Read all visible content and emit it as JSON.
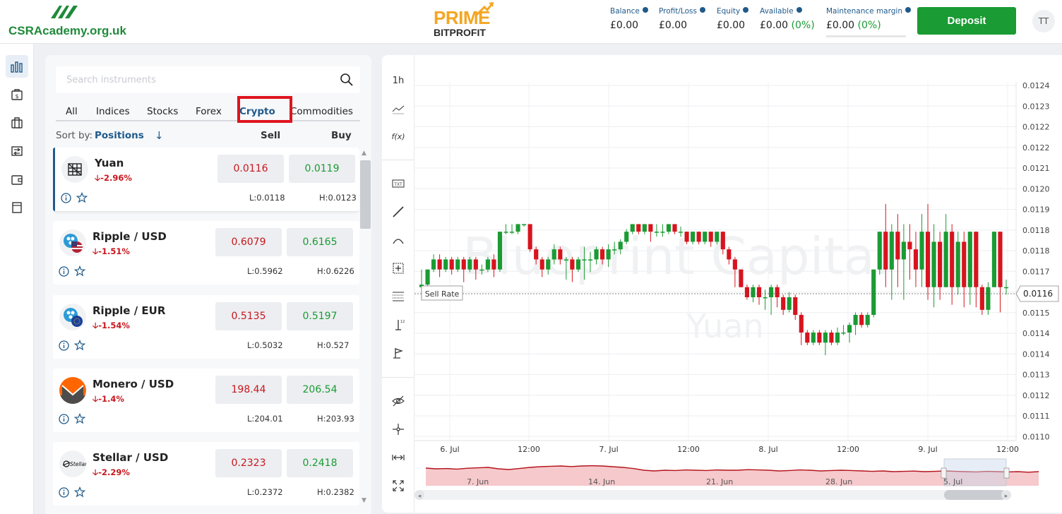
{
  "header": {
    "site_logo_text": "CSRAcademy.org.uk",
    "brand_line1": "PRIME",
    "brand_line2": "BITPROFIT",
    "stats": [
      {
        "label": "Balance",
        "value": "£0.00",
        "pct": ""
      },
      {
        "label": "Profit/Loss",
        "value": "£0.00",
        "pct": ""
      },
      {
        "label": "Equity",
        "value": "£0.00",
        "pct": ""
      },
      {
        "label": "Available",
        "value": "£0.00",
        "pct": "(0%)"
      },
      {
        "label": "Maintenance margin",
        "value": "£0.00",
        "pct": "(0%)"
      }
    ],
    "deposit_label": "Deposit",
    "avatar_initials": "TT"
  },
  "nav": {
    "icons": [
      "chart-bars-icon",
      "money-icon",
      "briefcase-icon",
      "transfer-icon",
      "wallet-icon",
      "document-icon"
    ]
  },
  "panel": {
    "search_placeholder": "Search instruments",
    "tabs": [
      "All",
      "Indices",
      "Stocks",
      "Forex",
      "Crypto",
      "Commodities"
    ],
    "active_tab": "Crypto",
    "sort_label": "Sort by:",
    "sort_value": "Positions",
    "sell_header": "Sell",
    "buy_header": "Buy",
    "instruments": [
      {
        "name": "Yuan",
        "change": "-2.96%",
        "sell": "0.0116",
        "buy": "0.0119",
        "low": "L:0.0118",
        "high": "H:0.0123",
        "icon": "yuan-icon",
        "selected": true
      },
      {
        "name": "Ripple / USD",
        "change": "-1.51%",
        "sell": "0.6079",
        "buy": "0.6165",
        "low": "L:0.5962",
        "high": "H:0.6226",
        "icon": "ripple-usd-icon",
        "selected": false
      },
      {
        "name": "Ripple / EUR",
        "change": "-1.54%",
        "sell": "0.5135",
        "buy": "0.5197",
        "low": "L:0.5032",
        "high": "H:0.527",
        "icon": "ripple-eur-icon",
        "selected": false
      },
      {
        "name": "Monero / USD",
        "change": "-1.4%",
        "sell": "198.44",
        "buy": "206.54",
        "low": "L:204.01",
        "high": "H:203.93",
        "icon": "monero-icon",
        "selected": false
      },
      {
        "name": "Stellar / USD",
        "change": "-2.29%",
        "sell": "0.2323",
        "buy": "0.2418",
        "low": "L:0.2372",
        "high": "H:0.2382",
        "icon": "stellar-icon",
        "selected": false
      }
    ]
  },
  "toolbar": {
    "interval": "1h",
    "fx": "f(x)"
  },
  "chart_data": {
    "type": "candlestick",
    "watermark": "Blueprint Capital",
    "watermark_sub": "Yuan",
    "y_ticks": [
      "0.0124",
      "0.0123",
      "0.0122",
      "0.0122",
      "0.0121",
      "0.0120",
      "0.0119",
      "0.0118",
      "0.0118",
      "0.0117",
      "0.0116",
      "0.0115",
      "0.0114",
      "0.0114",
      "0.0113",
      "0.0112",
      "0.0111",
      "0.0110"
    ],
    "x_ticks": [
      "6. Jul",
      "12:00",
      "7. Jul",
      "12:00",
      "8. Jul",
      "12:00",
      "9. Jul",
      "12:00"
    ],
    "sell_rate_label": "Sell Rate",
    "current_price": "0.0116",
    "ylim": [
      0.011,
      0.0124
    ],
    "navigator_ticks": [
      "7. Jun",
      "14. Jun",
      "21. Jun",
      "28. Jun",
      "5. Jul"
    ],
    "up_color": "#1a9b33",
    "down_color": "#d7141e",
    "candles": [
      [
        0.0116,
        0.01161,
        0.01155,
        0.01167
      ],
      [
        0.01161,
        0.01167,
        0.0116,
        0.01167
      ],
      [
        0.01167,
        0.01171,
        0.01166,
        0.01173
      ],
      [
        0.01171,
        0.01167,
        0.01164,
        0.01173
      ],
      [
        0.01167,
        0.01171,
        0.01166,
        0.01172
      ],
      [
        0.01171,
        0.01167,
        0.01165,
        0.01172
      ],
      [
        0.01167,
        0.01171,
        0.01166,
        0.01172
      ],
      [
        0.01171,
        0.01167,
        0.01162,
        0.01172
      ],
      [
        0.01167,
        0.01171,
        0.01166,
        0.01172
      ],
      [
        0.01171,
        0.01167,
        0.01163,
        0.01172
      ],
      [
        0.01167,
        0.01167,
        0.01165,
        0.01169
      ],
      [
        0.01167,
        0.01171,
        0.01166,
        0.01172
      ],
      [
        0.01171,
        0.01167,
        0.01164,
        0.01173
      ],
      [
        0.01167,
        0.01182,
        0.01166,
        0.01182
      ],
      [
        0.01182,
        0.01182,
        0.01181,
        0.01185
      ],
      [
        0.01182,
        0.01182,
        0.01181,
        0.01185
      ],
      [
        0.01182,
        0.01185,
        0.01181,
        0.01185
      ],
      [
        0.01185,
        0.01185,
        0.01184,
        0.01185
      ],
      [
        0.01185,
        0.01175,
        0.01174,
        0.01185
      ],
      [
        0.01175,
        0.01171,
        0.01169,
        0.01176
      ],
      [
        0.01171,
        0.01167,
        0.01164,
        0.01172
      ],
      [
        0.01167,
        0.01171,
        0.01165,
        0.01172
      ],
      [
        0.01171,
        0.01175,
        0.01169,
        0.01177
      ],
      [
        0.01175,
        0.01171,
        0.01169,
        0.01176
      ],
      [
        0.01171,
        0.01171,
        0.01163,
        0.01172
      ],
      [
        0.01171,
        0.01167,
        0.01162,
        0.01172
      ],
      [
        0.01167,
        0.01171,
        0.01166,
        0.01172
      ],
      [
        0.01171,
        0.01171,
        0.01163,
        0.01176
      ],
      [
        0.01171,
        0.01171,
        0.01166,
        0.01174
      ],
      [
        0.01171,
        0.01175,
        0.01169,
        0.01176
      ],
      [
        0.01175,
        0.01171,
        0.01169,
        0.01176
      ],
      [
        0.01171,
        0.01175,
        0.01168,
        0.01177
      ],
      [
        0.01175,
        0.01175,
        0.01173,
        0.01178
      ],
      [
        0.01175,
        0.01178,
        0.01173,
        0.01179
      ],
      [
        0.01178,
        0.01182,
        0.01177,
        0.01183
      ],
      [
        0.01182,
        0.01185,
        0.01181,
        0.01185
      ],
      [
        0.01185,
        0.01182,
        0.01181,
        0.01185
      ],
      [
        0.01182,
        0.01185,
        0.01181,
        0.01185
      ],
      [
        0.01185,
        0.01182,
        0.01178,
        0.01185
      ],
      [
        0.01182,
        0.01182,
        0.0118,
        0.01185
      ],
      [
        0.01182,
        0.01182,
        0.0118,
        0.01185
      ],
      [
        0.01182,
        0.01185,
        0.01181,
        0.01185
      ],
      [
        0.01185,
        0.01182,
        0.01181,
        0.01185
      ],
      [
        0.01182,
        0.01182,
        0.0118,
        0.01184
      ],
      [
        0.01182,
        0.01178,
        0.01177,
        0.01182
      ],
      [
        0.01178,
        0.01182,
        0.01177,
        0.01182
      ],
      [
        0.01182,
        0.01178,
        0.01177,
        0.01182
      ],
      [
        0.01178,
        0.01182,
        0.01177,
        0.01182
      ],
      [
        0.01182,
        0.01178,
        0.01176,
        0.01182
      ],
      [
        0.01178,
        0.01182,
        0.01177,
        0.01182
      ],
      [
        0.01182,
        0.01175,
        0.01173,
        0.01182
      ],
      [
        0.01175,
        0.01171,
        0.01169,
        0.01176
      ],
      [
        0.01171,
        0.01167,
        0.0116,
        0.01172
      ],
      [
        0.01167,
        0.0116,
        0.0116,
        0.01167
      ],
      [
        0.0116,
        0.01156,
        0.01155,
        0.01161
      ],
      [
        0.01156,
        0.0116,
        0.01154,
        0.01161
      ],
      [
        0.0116,
        0.01156,
        0.01153,
        0.01161
      ],
      [
        0.01156,
        0.01156,
        0.01151,
        0.01159
      ],
      [
        0.01156,
        0.0116,
        0.01149,
        0.01161
      ],
      [
        0.0116,
        0.01156,
        0.01152,
        0.01161
      ],
      [
        0.01156,
        0.01151,
        0.01149,
        0.01157
      ],
      [
        0.01151,
        0.01156,
        0.0115,
        0.01158
      ],
      [
        0.01156,
        0.01149,
        0.01147,
        0.01157
      ],
      [
        0.01149,
        0.01142,
        0.01137,
        0.0115
      ],
      [
        0.01142,
        0.01138,
        0.01137,
        0.01143
      ],
      [
        0.01138,
        0.01142,
        0.01137,
        0.01143
      ],
      [
        0.01142,
        0.01138,
        0.01137,
        0.01143
      ],
      [
        0.01138,
        0.01142,
        0.01133,
        0.01143
      ],
      [
        0.01142,
        0.01138,
        0.01137,
        0.01143
      ],
      [
        0.01138,
        0.01142,
        0.01137,
        0.01144
      ],
      [
        0.01142,
        0.01142,
        0.01141,
        0.01145
      ],
      [
        0.01142,
        0.01145,
        0.01138,
        0.01146
      ],
      [
        0.01145,
        0.01149,
        0.01141,
        0.0115
      ],
      [
        0.01149,
        0.01145,
        0.01144,
        0.0115
      ],
      [
        0.01145,
        0.01149,
        0.01144,
        0.0115
      ],
      [
        0.01149,
        0.01167,
        0.01148,
        0.01167
      ],
      [
        0.01167,
        0.01182,
        0.01165,
        0.01182
      ],
      [
        0.01182,
        0.01167,
        0.0116,
        0.01193
      ],
      [
        0.01167,
        0.01182,
        0.01155,
        0.01185
      ],
      [
        0.01182,
        0.01171,
        0.0116,
        0.01189
      ],
      [
        0.01171,
        0.01178,
        0.01155,
        0.01185
      ],
      [
        0.01178,
        0.01175,
        0.01163,
        0.01185
      ],
      [
        0.01175,
        0.01167,
        0.0116,
        0.01182
      ],
      [
        0.01167,
        0.01182,
        0.0116,
        0.01189
      ],
      [
        0.01182,
        0.0116,
        0.01155,
        0.01193
      ],
      [
        0.0116,
        0.01178,
        0.01152,
        0.01185
      ],
      [
        0.01178,
        0.0116,
        0.01155,
        0.01182
      ],
      [
        0.0116,
        0.01182,
        0.0116,
        0.01189
      ],
      [
        0.01182,
        0.0116,
        0.01153,
        0.01185
      ],
      [
        0.0116,
        0.01178,
        0.01157,
        0.01182
      ],
      [
        0.01178,
        0.0116,
        0.01152,
        0.01182
      ],
      [
        0.0116,
        0.01182,
        0.01153,
        0.01182
      ],
      [
        0.01182,
        0.0116,
        0.01152,
        0.01182
      ],
      [
        0.0116,
        0.01151,
        0.01149,
        0.01161
      ],
      [
        0.01151,
        0.0116,
        0.01149,
        0.01162
      ],
      [
        0.0116,
        0.01182,
        0.0116,
        0.01182
      ],
      [
        0.01182,
        0.0116,
        0.0115,
        0.01182
      ],
      [
        0.0116,
        0.0116,
        0.01157,
        0.01163
      ]
    ]
  }
}
